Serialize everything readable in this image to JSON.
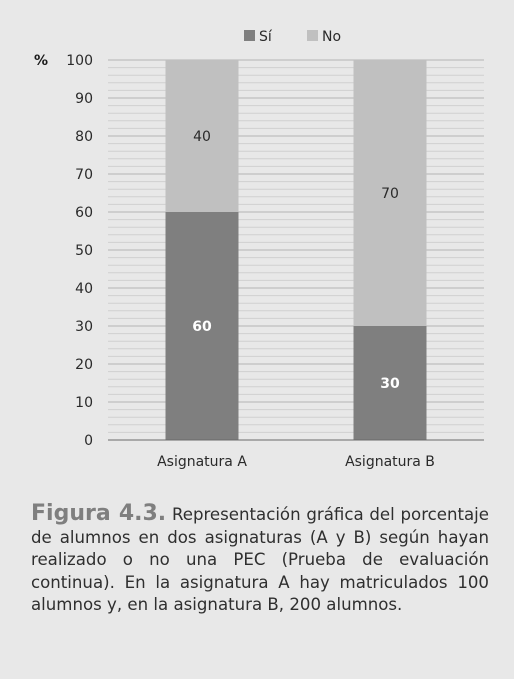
{
  "chart_data": {
    "type": "bar",
    "stacked": true,
    "categories": [
      "Asignatura A",
      "Asignatura B"
    ],
    "series": [
      {
        "name": "Sí",
        "values": [
          60,
          30
        ],
        "color": "#7f7f7f",
        "label_color": "#ffffff"
      },
      {
        "name": "No",
        "values": [
          40,
          70
        ],
        "color": "#c0c0c0",
        "label_color": "#2a2a2a"
      }
    ],
    "ylabel": "%",
    "ylim": [
      0,
      100
    ],
    "yticks": [
      0,
      10,
      20,
      30,
      40,
      50,
      60,
      70,
      80,
      90,
      100
    ],
    "grid": true,
    "legend": "top-center"
  },
  "caption": {
    "label": "Figura 4.3.",
    "text": "Representación gráfica del porcentaje de alumnos en dos asignaturas (A y B) según hayan realizado o no una PEC (Prueba de evaluación continua). En la asignatura A hay matriculados 100 alumnos y, en la asignatura B, 200 alumnos."
  }
}
